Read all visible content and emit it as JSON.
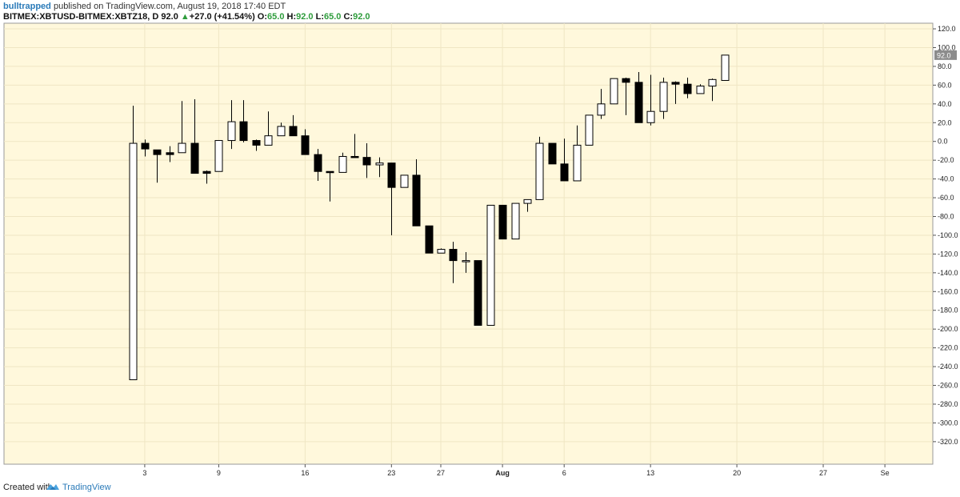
{
  "header": {
    "author": "bulltrapped",
    "published": "published on TradingView.com, August 19, 2018 17:40 EDT",
    "symbol": "BITMEX:XBTUSD-BITMEX:XBTZ18, D",
    "last": "92.0",
    "change": "+27.0 (+41.54%)",
    "o_label": "O:",
    "o_value": "65.0",
    "h_label": "H:",
    "h_value": "92.0",
    "l_label": "L:",
    "l_value": "65.0",
    "c_label": "C:",
    "c_value": "92.0"
  },
  "footer": {
    "created_with": "Created with",
    "brand": "TradingView"
  },
  "colors": {
    "plot_background": "#fff8dc",
    "up_fill": "#ffffff",
    "down_fill": "#000000",
    "price_tag": "#8c8c8c"
  },
  "chart_data": {
    "type": "candlestick",
    "price_tag": "92.0",
    "y_ticks": [
      "120.0",
      "100.0",
      "80.0",
      "60.0",
      "40.0",
      "20.0",
      "0.0",
      "-20.0",
      "-40.0",
      "-60.0",
      "-80.0",
      "-100.0",
      "-120.0",
      "-140.0",
      "-160.0",
      "-180.0",
      "-200.0",
      "-220.0",
      "-240.0",
      "-260.0",
      "-280.0",
      "-300.0",
      "-320.0"
    ],
    "ylim": [
      -344,
      126
    ],
    "x_ticks": [
      {
        "label": "3",
        "index": 1
      },
      {
        "label": "9",
        "index": 7
      },
      {
        "label": "16",
        "index": 14
      },
      {
        "label": "23",
        "index": 21
      },
      {
        "label": "27",
        "index": 25
      },
      {
        "label": "Aug",
        "index": 30
      },
      {
        "label": "6",
        "index": 35
      },
      {
        "label": "13",
        "index": 42
      },
      {
        "label": "20",
        "index": 49
      },
      {
        "label": "27",
        "index": 56
      },
      {
        "label": "Se",
        "index": 61
      }
    ],
    "candles": [
      {
        "o": -254,
        "h": 38,
        "l": -254,
        "c": -2
      },
      {
        "o": -2,
        "h": 2,
        "l": -16,
        "c": -8
      },
      {
        "o": -9,
        "h": -9,
        "l": -44,
        "c": -14
      },
      {
        "o": -12,
        "h": -5,
        "l": -22,
        "c": -14
      },
      {
        "o": -12,
        "h": 43,
        "l": -12,
        "c": -2
      },
      {
        "o": -2,
        "h": 45,
        "l": -34,
        "c": -34
      },
      {
        "o": -32,
        "h": -31,
        "l": -45,
        "c": -34
      },
      {
        "o": -32,
        "h": 1,
        "l": -32,
        "c": 1
      },
      {
        "o": 1,
        "h": 44,
        "l": -8,
        "c": 21
      },
      {
        "o": 21,
        "h": 44,
        "l": -1,
        "c": 1
      },
      {
        "o": 1,
        "h": 2,
        "l": -10,
        "c": -4
      },
      {
        "o": -4,
        "h": 32,
        "l": -4,
        "c": 6
      },
      {
        "o": 6,
        "h": 20,
        "l": 6,
        "c": 16
      },
      {
        "o": 16,
        "h": 28,
        "l": 6,
        "c": 6
      },
      {
        "o": 6,
        "h": 13,
        "l": -14,
        "c": -14
      },
      {
        "o": -14,
        "h": -8,
        "l": -42,
        "c": -32
      },
      {
        "o": -32,
        "h": -32,
        "l": -64,
        "c": -33
      },
      {
        "o": -33,
        "h": -12,
        "l": -33,
        "c": -16
      },
      {
        "o": -16,
        "h": 8,
        "l": -17,
        "c": -17
      },
      {
        "o": -17,
        "h": -2,
        "l": -39,
        "c": -25
      },
      {
        "o": -25,
        "h": -17,
        "l": -38,
        "c": -23
      },
      {
        "o": -23,
        "h": -23,
        "l": -100,
        "c": -49
      },
      {
        "o": -49,
        "h": -36,
        "l": -49,
        "c": -36
      },
      {
        "o": -36,
        "h": -19,
        "l": -90,
        "c": -90
      },
      {
        "o": -90,
        "h": -90,
        "l": -119,
        "c": -119
      },
      {
        "o": -119,
        "h": -114,
        "l": -119,
        "c": -115
      },
      {
        "o": -115,
        "h": -107,
        "l": -151,
        "c": -127
      },
      {
        "o": -127,
        "h": -118,
        "l": -140,
        "c": -127
      },
      {
        "o": -127,
        "h": -127,
        "l": -196,
        "c": -196
      },
      {
        "o": -196,
        "h": -68,
        "l": -196,
        "c": -68
      },
      {
        "o": -68,
        "h": -68,
        "l": -104,
        "c": -104
      },
      {
        "o": -104,
        "h": -66,
        "l": -104,
        "c": -66
      },
      {
        "o": -66,
        "h": -62,
        "l": -75,
        "c": -62
      },
      {
        "o": -62,
        "h": 5,
        "l": -62,
        "c": -2
      },
      {
        "o": -2,
        "h": -2,
        "l": -24,
        "c": -24
      },
      {
        "o": -24,
        "h": 3,
        "l": -42,
        "c": -42
      },
      {
        "o": -42,
        "h": 17,
        "l": -42,
        "c": -4
      },
      {
        "o": -4,
        "h": 28,
        "l": -4,
        "c": 28
      },
      {
        "o": 28,
        "h": 56,
        "l": 24,
        "c": 40
      },
      {
        "o": 40,
        "h": 67,
        "l": 40,
        "c": 67
      },
      {
        "o": 67,
        "h": 68,
        "l": 28,
        "c": 63
      },
      {
        "o": 63,
        "h": 74,
        "l": 20,
        "c": 20
      },
      {
        "o": 20,
        "h": 71,
        "l": 17,
        "c": 32
      },
      {
        "o": 32,
        "h": 68,
        "l": 24,
        "c": 63
      },
      {
        "o": 63,
        "h": 64,
        "l": 40,
        "c": 61
      },
      {
        "o": 61,
        "h": 68,
        "l": 46,
        "c": 51
      },
      {
        "o": 51,
        "h": 61,
        "l": 51,
        "c": 59
      },
      {
        "o": 59,
        "h": 67,
        "l": 43,
        "c": 66
      },
      {
        "o": 65,
        "h": 92,
        "l": 65,
        "c": 92
      }
    ]
  }
}
